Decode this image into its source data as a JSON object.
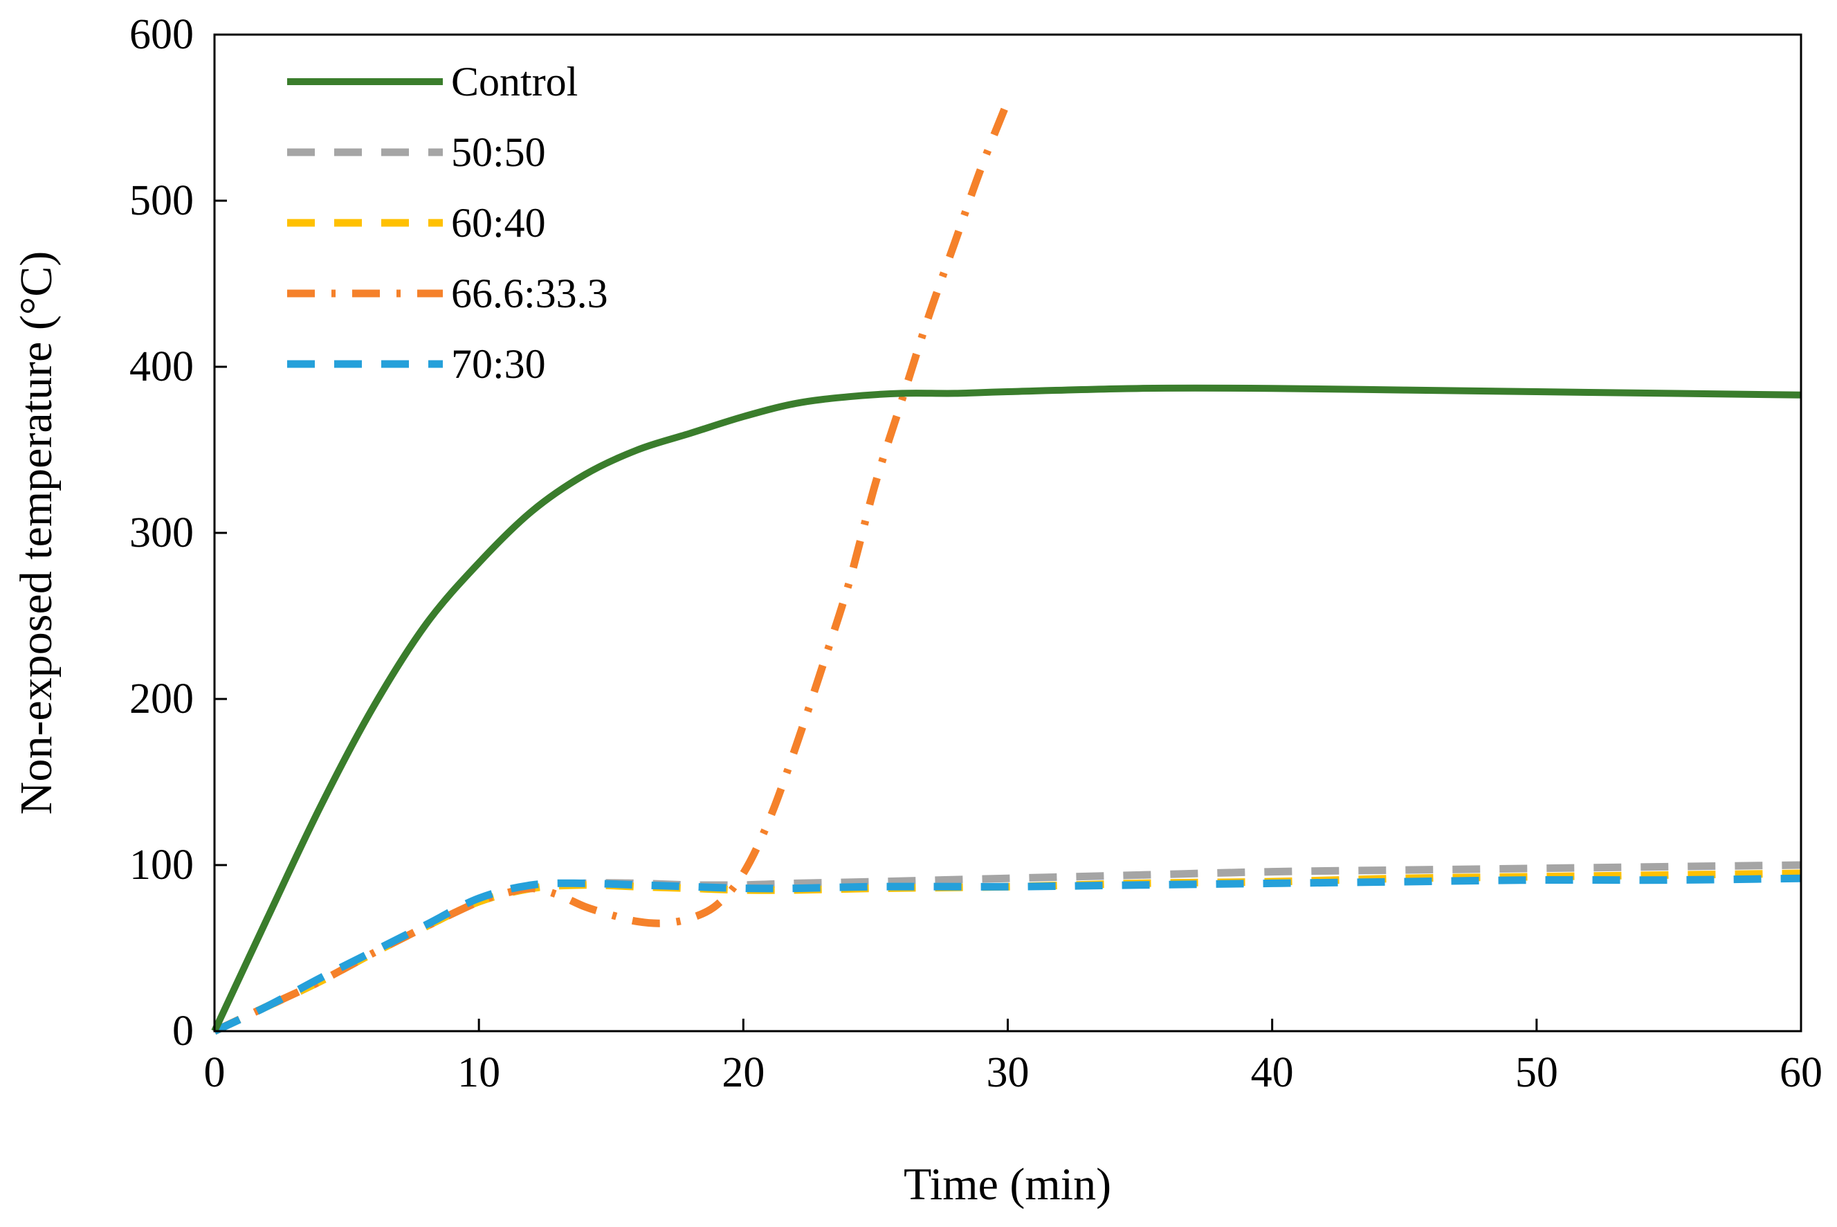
{
  "chart_data": {
    "type": "line",
    "title": "",
    "xlabel": "Time (min)",
    "ylabel": "Non-exposed temperature (°C)",
    "xlim": [
      0,
      60
    ],
    "ylim": [
      0,
      600
    ],
    "xticks": [
      0,
      10,
      20,
      30,
      40,
      50,
      60
    ],
    "yticks": [
      0,
      100,
      200,
      300,
      400,
      500,
      600
    ],
    "xtick_labels": [
      "0",
      "10",
      "20",
      "30",
      "40",
      "50",
      "60"
    ],
    "ytick_labels": [
      "0",
      "100",
      "200",
      "300",
      "400",
      "500",
      "600"
    ],
    "grid": false,
    "legend_position": "top-left",
    "series": [
      {
        "name": "Control",
        "color": "#3a7d2c",
        "style": "solid",
        "x": [
          0,
          2,
          4,
          6,
          8,
          10,
          12,
          14,
          16,
          18,
          20,
          22,
          24,
          26,
          28,
          30,
          35,
          40,
          45,
          50,
          55,
          60
        ],
        "y": [
          0,
          68,
          135,
          195,
          245,
          282,
          313,
          335,
          350,
          360,
          370,
          378,
          382,
          384,
          384,
          385,
          387,
          387,
          386,
          385,
          384,
          383
        ]
      },
      {
        "name": "50:50",
        "color": "#a5a5a5",
        "style": "dashed",
        "x": [
          0,
          2,
          4,
          6,
          8,
          10,
          12,
          14,
          16,
          18,
          20,
          22,
          25,
          30,
          35,
          40,
          45,
          50,
          55,
          60
        ],
        "y": [
          0,
          15,
          30,
          47,
          63,
          78,
          86,
          89,
          89,
          88,
          88,
          89,
          90,
          92,
          94,
          96,
          97,
          98,
          99,
          100
        ]
      },
      {
        "name": "60:40",
        "color": "#ffc000",
        "style": "dashed",
        "x": [
          0,
          2,
          4,
          6,
          8,
          10,
          12,
          14,
          16,
          18,
          20,
          22,
          25,
          30,
          35,
          40,
          45,
          50,
          55,
          60
        ],
        "y": [
          0,
          15,
          30,
          47,
          63,
          78,
          86,
          88,
          87,
          86,
          85,
          85,
          86,
          87,
          89,
          90,
          92,
          93,
          94,
          95
        ]
      },
      {
        "name": "66.6:33.3",
        "color": "#f5812a",
        "style": "dashdot",
        "x": [
          0,
          2,
          4,
          6,
          8,
          10,
          11,
          12,
          13,
          14,
          15,
          16,
          17,
          18,
          19,
          20,
          21,
          22,
          23,
          24,
          25,
          26,
          27,
          28,
          29,
          30
        ],
        "y": [
          0,
          15,
          30,
          47,
          63,
          78,
          83,
          86,
          82,
          75,
          70,
          66,
          65,
          68,
          76,
          95,
          128,
          172,
          220,
          270,
          330,
          380,
          430,
          475,
          520,
          560
        ]
      },
      {
        "name": "70:30",
        "color": "#25a0da",
        "style": "dashed",
        "x": [
          0,
          2,
          4,
          6,
          8,
          10,
          12,
          14,
          16,
          18,
          20,
          22,
          25,
          30,
          35,
          40,
          45,
          50,
          55,
          60
        ],
        "y": [
          0,
          15,
          32,
          48,
          64,
          80,
          88,
          89,
          88,
          87,
          86,
          86,
          87,
          87,
          88,
          89,
          90,
          91,
          91,
          92
        ]
      }
    ]
  }
}
